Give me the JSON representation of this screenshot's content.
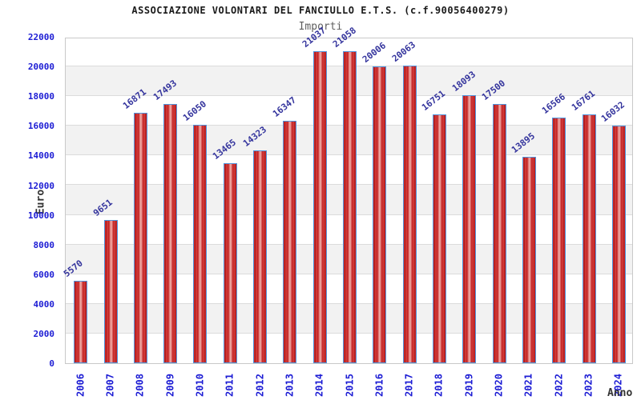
{
  "header": {
    "title": "ASSOCIAZIONE VOLONTARI DEL FANCIULLO E.T.S. (c.f.90056400279)",
    "subtitle": "Importi"
  },
  "chart_data": {
    "type": "bar",
    "title": "ASSOCIAZIONE VOLONTARI DEL FANCIULLO E.T.S. (c.f.90056400279)",
    "subtitle": "Importi",
    "xlabel": "Anno",
    "ylabel": "Euro",
    "categories": [
      "2006",
      "2007",
      "2008",
      "2009",
      "2010",
      "2011",
      "2012",
      "2013",
      "2014",
      "2015",
      "2016",
      "2017",
      "2018",
      "2019",
      "2020",
      "2021",
      "2022",
      "2023",
      "2024"
    ],
    "values": [
      5570,
      9651,
      16871,
      17493,
      16050,
      13465,
      14323,
      16347,
      21037,
      21058,
      20006,
      20063,
      16751,
      18093,
      17500,
      13895,
      16566,
      16761,
      16032
    ],
    "ylim": [
      0,
      22000
    ],
    "y_tick_step": 2000,
    "y_ticks": [
      0,
      2000,
      4000,
      6000,
      8000,
      10000,
      12000,
      14000,
      16000,
      18000,
      20000,
      22000
    ],
    "grid": true,
    "legend": "none",
    "colors": {
      "bar_fill": "#d42a2a",
      "bar_border": "#4f94dc",
      "value_label": "#34349d",
      "axis_tick_text": "#1c1cd4",
      "band_gray": "#f2f2f2",
      "gridline": "#dcdcdc",
      "plot_border": "#c9c9c9",
      "title_text": "#1a1a1a",
      "subtitle_text": "#5f5f5f"
    }
  }
}
